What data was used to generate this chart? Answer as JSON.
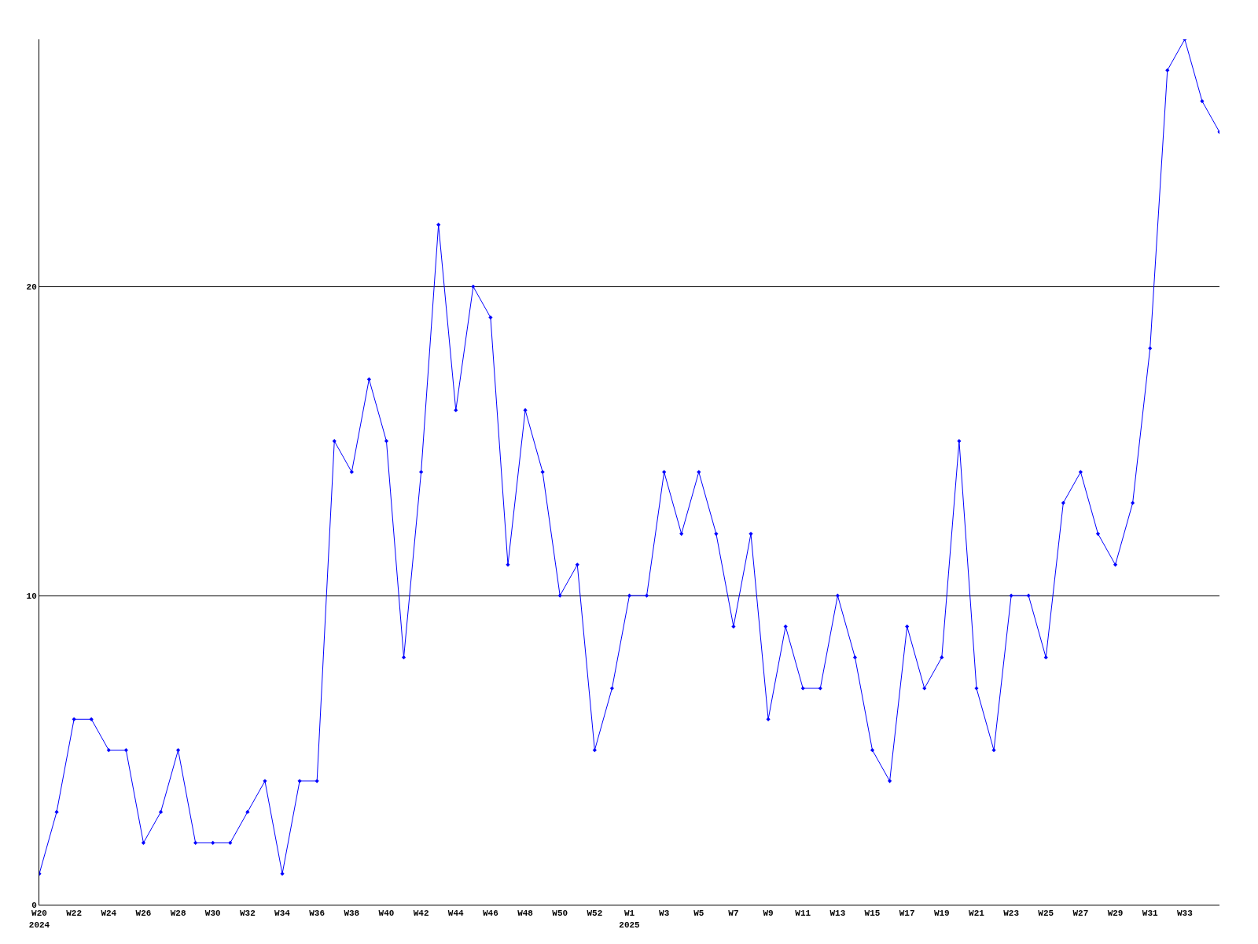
{
  "chart_data": {
    "type": "line",
    "categories": [
      "W20\n2024",
      null,
      "W22",
      null,
      "W24",
      null,
      "W26",
      null,
      "W28",
      null,
      "W30",
      null,
      "W32",
      null,
      "W34",
      null,
      "W36",
      null,
      "W38",
      null,
      "W40",
      null,
      "W42",
      null,
      "W44",
      null,
      "W46",
      null,
      "W48",
      null,
      "W50",
      null,
      "W52",
      null,
      "W1\n2025",
      null,
      "W3",
      null,
      "W5",
      null,
      "W7",
      null,
      "W9",
      null,
      "W11",
      null,
      "W13",
      null,
      "W15",
      null,
      "W17",
      null,
      "W19",
      null,
      "W21",
      null,
      "W23",
      null,
      "W25",
      null,
      "W27",
      null,
      "W29",
      null,
      "W31",
      null,
      "W33",
      null,
      null
    ],
    "series": [
      {
        "color": "#0000ff",
        "values": [
          1,
          3,
          6,
          6,
          5,
          5,
          2,
          3,
          5,
          2,
          2,
          2,
          3,
          4,
          1,
          4,
          4,
          15,
          14,
          17,
          15,
          8,
          14,
          22,
          16,
          20,
          19,
          11,
          16,
          14,
          10,
          11,
          5,
          7,
          10,
          10,
          14,
          12,
          14,
          12,
          9,
          12,
          6,
          9,
          7,
          7,
          10,
          8,
          5,
          4,
          9,
          7,
          8,
          15,
          7,
          5,
          10,
          10,
          8,
          13,
          14,
          12,
          11,
          13,
          18,
          27,
          28,
          26,
          25
        ]
      }
    ],
    "ylim": [
      0,
      28
    ],
    "yticks": [
      0,
      10,
      20
    ],
    "grid": "y",
    "marker": "diamond",
    "line_style": "solid"
  }
}
